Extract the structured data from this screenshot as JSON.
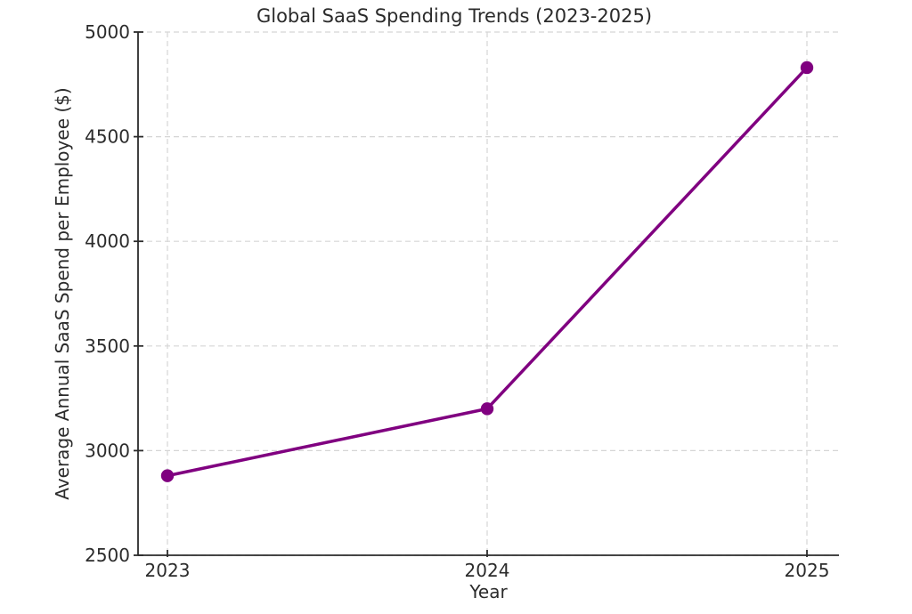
{
  "chart_data": {
    "type": "line",
    "title": "Global SaaS Spending Trends (2023-2025)",
    "xlabel": "Year",
    "ylabel": "Average Annual SaaS Spend per Employee ($)",
    "categories": [
      "2023",
      "2024",
      "2025"
    ],
    "series": [
      {
        "name": "Average Annual SaaS Spend per Employee ($)",
        "values": [
          2880,
          3200,
          4830
        ]
      }
    ],
    "ylim": [
      2500,
      5000
    ],
    "yticks": [
      2500,
      3000,
      3500,
      4000,
      4500,
      5000
    ],
    "grid": "dashed-both-axes",
    "legend": "none",
    "marker": "circle"
  },
  "colors": {
    "background": "#ffffff",
    "line": "#800080",
    "marker": "#800080",
    "grid": "#d5d5d5",
    "axis": "#2b2b2b",
    "text": "#2b2b2b"
  }
}
